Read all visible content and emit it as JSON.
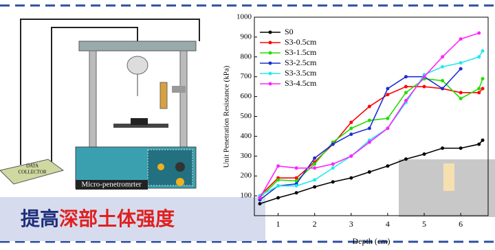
{
  "chart_data": {
    "type": "line",
    "x_label": "Depth (cm)",
    "y_label": "Unit Penetration Resistance (kPa)",
    "x": [
      0.5,
      1,
      1.5,
      2,
      2.5,
      3,
      3.5,
      4,
      4.5,
      5,
      5.5,
      6,
      6.5,
      6.6
    ],
    "series": [
      {
        "name": "S0",
        "color": "#000000",
        "values": [
          60,
          90,
          115,
          145,
          170,
          190,
          220,
          250,
          285,
          310,
          340,
          340,
          360,
          380
        ]
      },
      {
        "name": "S3-0.5cm",
        "color": "#ff0000",
        "values": [
          100,
          190,
          190,
          270,
          360,
          470,
          550,
          610,
          650,
          650,
          640,
          620,
          620,
          640
        ]
      },
      {
        "name": "S3-1.5cm",
        "color": "#22dd00",
        "values": [
          90,
          180,
          175,
          260,
          370,
          440,
          480,
          490,
          620,
          690,
          680,
          590,
          640,
          690
        ]
      },
      {
        "name": "S3-2.5cm",
        "color": "#1a2fd0",
        "values": [
          80,
          150,
          160,
          290,
          360,
          410,
          440,
          640,
          700,
          700,
          640,
          740,
          null,
          null
        ]
      },
      {
        "name": "S3-3.5cm",
        "color": "#22e8f0",
        "values": [
          100,
          150,
          150,
          180,
          240,
          300,
          380,
          440,
          570,
          710,
          750,
          770,
          800,
          830
        ]
      },
      {
        "name": "S3-4.5cm",
        "color": "#ff22ff",
        "values": [
          90,
          250,
          240,
          240,
          260,
          300,
          370,
          440,
          580,
          700,
          800,
          890,
          920,
          null
        ]
      }
    ],
    "xlim": [
      0.35,
      6.75
    ],
    "xticks": [
      1,
      2,
      3,
      4,
      5,
      6
    ],
    "ylim": [
      0,
      1000
    ],
    "yticks": [
      100,
      200,
      300,
      400,
      500,
      600,
      700,
      800,
      900,
      1000
    ],
    "grid": false,
    "legend": "upper left"
  },
  "apparatus": {
    "collector_label_1": "DATA",
    "collector_label_2": "COLLECTOR",
    "device_label": "Micro-penetromrter"
  },
  "banner": {
    "part1": "提高",
    "part2": "深部土体强度"
  }
}
